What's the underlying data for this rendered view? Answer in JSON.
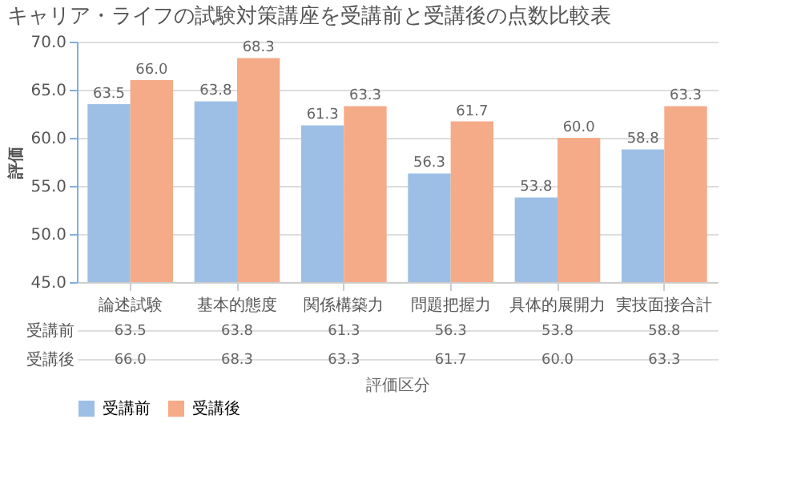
{
  "chart_data": {
    "type": "bar",
    "title": "キャリア・ライフの試験対策講座を受講前と受講後の点数比較表",
    "xlabel": "評価区分",
    "ylabel": "評価",
    "categories": [
      "論述試験",
      "基本的態度",
      "関係構築力",
      "問題把握力",
      "具体的展開力",
      "実技面接合計"
    ],
    "series": [
      {
        "name": "受講前",
        "color": "#9dbfe6",
        "values": [
          63.5,
          63.8,
          61.3,
          56.3,
          53.8,
          58.8
        ],
        "value_labels": [
          "63.5",
          "63.8",
          "61.3",
          "56.3",
          "53.8",
          "58.8"
        ]
      },
      {
        "name": "受講後",
        "color": "#f5aa88",
        "values": [
          66.0,
          68.3,
          63.3,
          61.7,
          60.0,
          63.3
        ],
        "value_labels": [
          "66.0",
          "68.3",
          "63.3",
          "61.7",
          "60.0",
          "63.3"
        ]
      }
    ],
    "ylim": [
      45,
      70
    ],
    "yticks": [
      {
        "value": 45,
        "label": "45.0"
      },
      {
        "value": 50,
        "label": "50.0"
      },
      {
        "value": 55,
        "label": "55.0"
      },
      {
        "value": 60,
        "label": "60.0"
      },
      {
        "value": 65,
        "label": "65.0"
      },
      {
        "value": 70,
        "label": "70.0"
      }
    ],
    "grid": "y",
    "legend": "bottom"
  }
}
